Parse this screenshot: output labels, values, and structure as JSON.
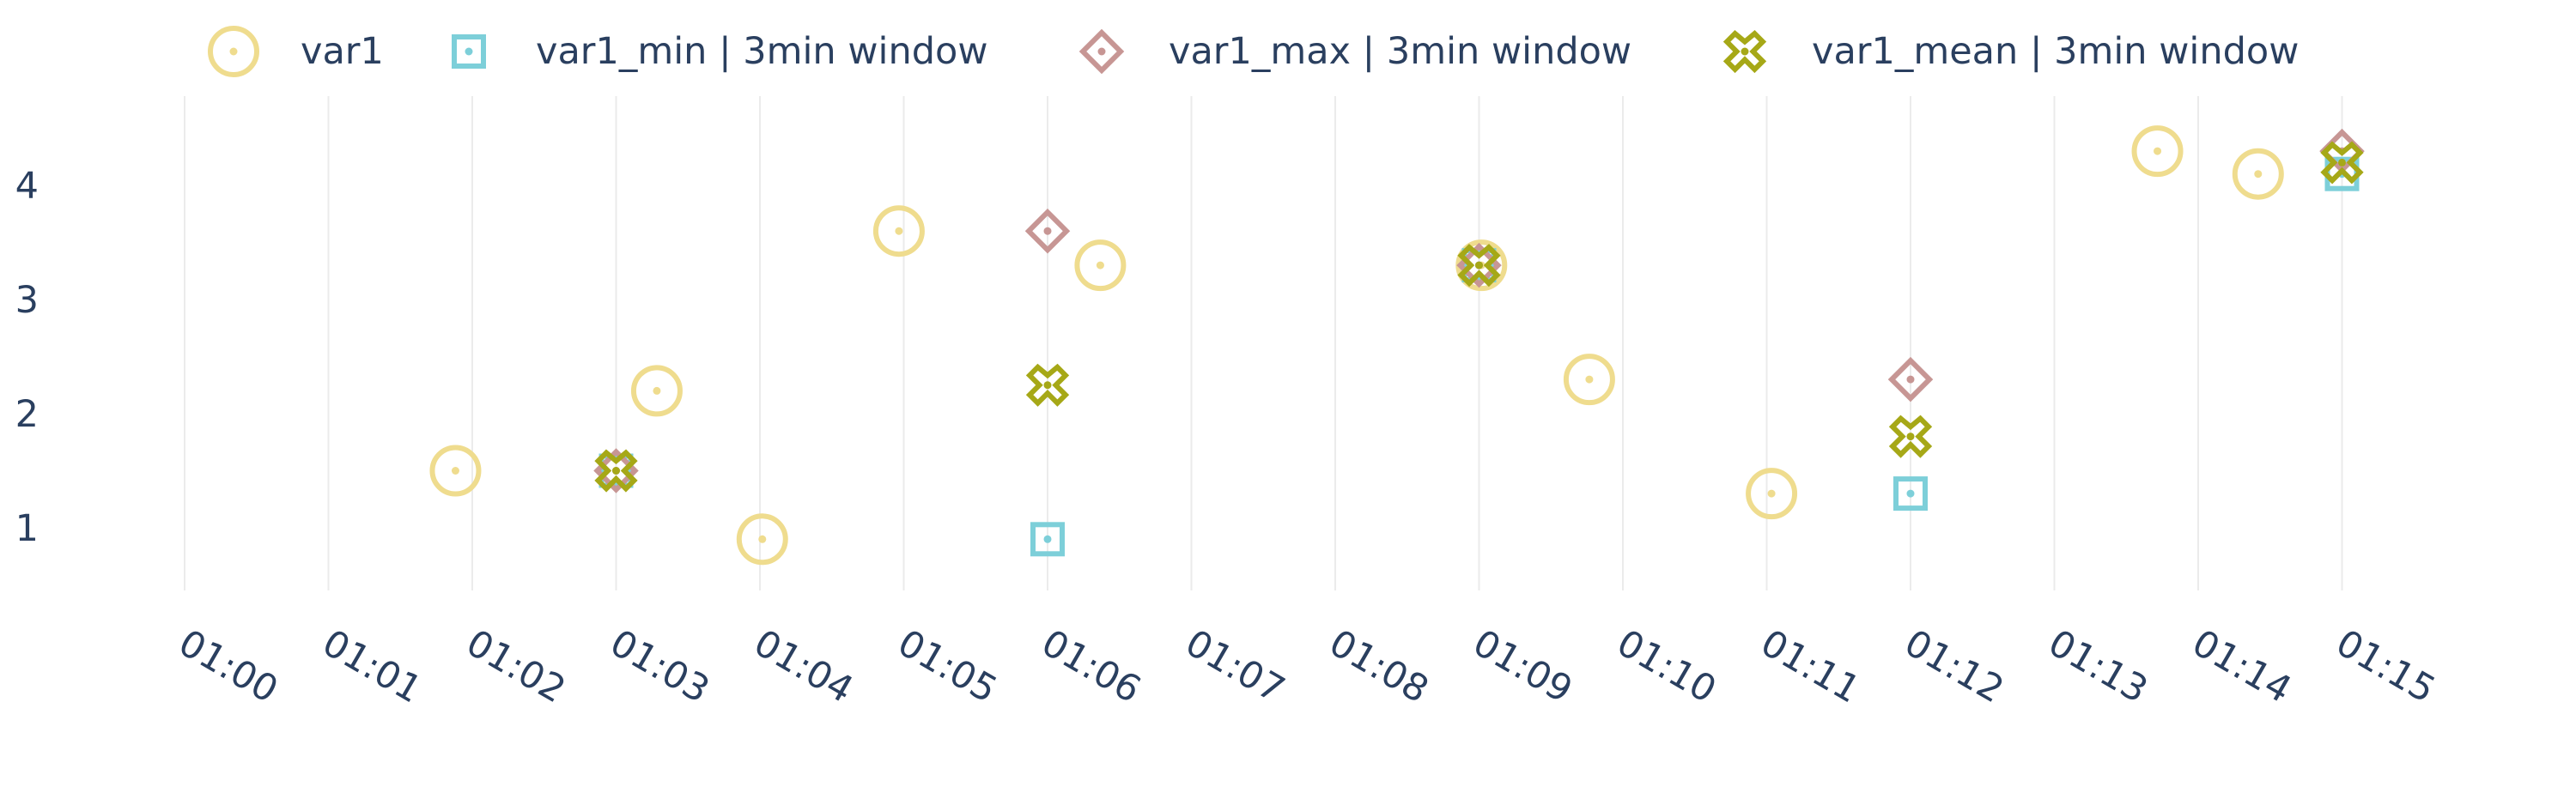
{
  "colors": {
    "var1": "#efdc8e",
    "var1_min": "#7dcfd9",
    "var1_max": "#c79694",
    "var1_mean": "#a6a817",
    "text": "#2a3f5f",
    "grid": "#ebebeb"
  },
  "chart_data": {
    "type": "scatter",
    "x_unit": "minutes after 01:00",
    "xticks": [
      "01:00",
      "01:01",
      "01:02",
      "01:03",
      "01:04",
      "01:05",
      "01:06",
      "01:07",
      "01:08",
      "01:09",
      "01:10",
      "01:11",
      "01:12",
      "01:13",
      "01:14",
      "01:15"
    ],
    "yticks": [
      "1",
      "2",
      "3",
      "4"
    ],
    "grid": "vertical",
    "legend_position": "top",
    "series": [
      {
        "name": "var1",
        "marker": "circle-open-dot",
        "points": [
          {
            "x": "01:01:53",
            "y": 1.5
          },
          {
            "x": "01:03:17",
            "y": 2.2
          },
          {
            "x": "01:04:01",
            "y": 0.9
          },
          {
            "x": "01:04:58",
            "y": 3.6
          },
          {
            "x": "01:06:22",
            "y": 3.3
          },
          {
            "x": "01:09:01",
            "y": 3.3
          },
          {
            "x": "01:09:46",
            "y": 2.3
          },
          {
            "x": "01:11:02",
            "y": 1.3
          },
          {
            "x": "01:13:43",
            "y": 4.3
          },
          {
            "x": "01:14:25",
            "y": 4.1
          }
        ]
      },
      {
        "name": "var1_min | 3min window",
        "marker": "square-open-dot",
        "points": [
          {
            "x": "01:03:00",
            "y": 1.5
          },
          {
            "x": "01:06:00",
            "y": 0.9
          },
          {
            "x": "01:09:00",
            "y": 3.3
          },
          {
            "x": "01:12:00",
            "y": 1.3
          },
          {
            "x": "01:15:00",
            "y": 4.1
          }
        ]
      },
      {
        "name": "var1_max | 3min window",
        "marker": "diamond-open-dot",
        "points": [
          {
            "x": "01:03:00",
            "y": 1.5
          },
          {
            "x": "01:06:00",
            "y": 3.6
          },
          {
            "x": "01:09:00",
            "y": 3.3
          },
          {
            "x": "01:12:00",
            "y": 2.3
          },
          {
            "x": "01:15:00",
            "y": 4.3
          }
        ]
      },
      {
        "name": "var1_mean | 3min window",
        "marker": "x-open-dot",
        "points": [
          {
            "x": "01:03:00",
            "y": 1.5
          },
          {
            "x": "01:06:00",
            "y": 2.25
          },
          {
            "x": "01:09:00",
            "y": 3.3
          },
          {
            "x": "01:12:00",
            "y": 1.8
          },
          {
            "x": "01:15:00",
            "y": 4.2
          }
        ]
      }
    ]
  }
}
